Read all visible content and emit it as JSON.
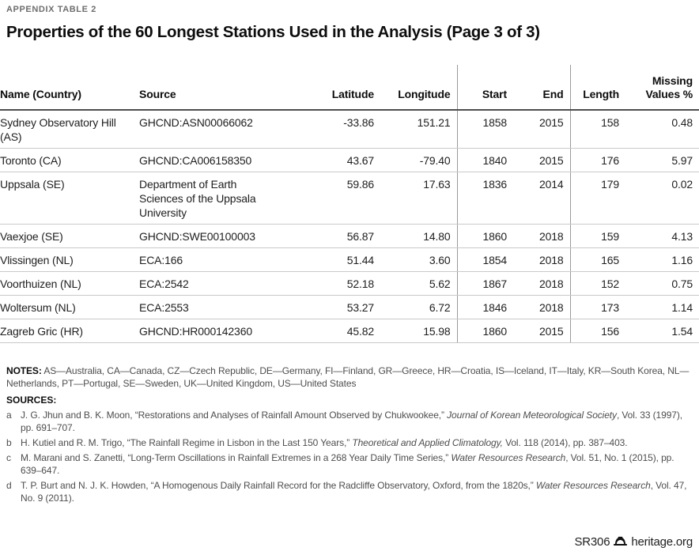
{
  "page": {
    "eyebrow": "APPENDIX TABLE 2",
    "title": "Properties of the 60 Longest Stations Used in the Analysis (Page 3 of 3)",
    "footer": {
      "report_id": "SR306",
      "site": "heritage.org",
      "logo": "heritage-bell-icon"
    }
  },
  "colors": {
    "header_rule": "#4d4d4d",
    "row_rule": "#c9c9c9",
    "vertical_rule": "#9a9a9a",
    "muted_text": "#4d4d4d"
  },
  "table": {
    "columns": {
      "name": "Name (Country)",
      "source": "Source",
      "latitude": "Latitude",
      "longitude": "Longitude",
      "start": "Start",
      "end": "End",
      "length": "Length",
      "missing": "Missing Values %"
    },
    "rows": [
      {
        "name": "Sydney Observatory Hill (AS)",
        "source": "GHCND:ASN00066062",
        "latitude": "-33.86",
        "longitude": "151.21",
        "start": "1858",
        "end": "2015",
        "length": "158",
        "missing": "0.48"
      },
      {
        "name": "Toronto (CA)",
        "source": "GHCND:CA006158350",
        "latitude": "43.67",
        "longitude": "-79.40",
        "start": "1840",
        "end": "2015",
        "length": "176",
        "missing": "5.97"
      },
      {
        "name": "Uppsala (SE)",
        "source": "Department of Earth Sciences of the Uppsala University",
        "latitude": "59.86",
        "longitude": "17.63",
        "start": "1836",
        "end": "2014",
        "length": "179",
        "missing": "0.02"
      },
      {
        "name": "Vaexjoe (SE)",
        "source": "GHCND:SWE00100003",
        "latitude": "56.87",
        "longitude": "14.80",
        "start": "1860",
        "end": "2018",
        "length": "159",
        "missing": "4.13"
      },
      {
        "name": "Vlissingen (NL)",
        "source": "ECA:166",
        "latitude": "51.44",
        "longitude": "3.60",
        "start": "1854",
        "end": "2018",
        "length": "165",
        "missing": "1.16"
      },
      {
        "name": "Voorthuizen (NL)",
        "source": "ECA:2542",
        "latitude": "52.18",
        "longitude": "5.62",
        "start": "1867",
        "end": "2018",
        "length": "152",
        "missing": "0.75"
      },
      {
        "name": "Woltersum (NL)",
        "source": "ECA:2553",
        "latitude": "53.27",
        "longitude": "6.72",
        "start": "1846",
        "end": "2018",
        "length": "173",
        "missing": "1.14"
      },
      {
        "name": "Zagreb Gric (HR)",
        "source": "GHCND:HR000142360",
        "latitude": "45.82",
        "longitude": "15.98",
        "start": "1860",
        "end": "2015",
        "length": "156",
        "missing": "1.54"
      }
    ]
  },
  "notes": {
    "label": "NOTES:",
    "text": "AS—Australia, CA—Canada, CZ—Czech Republic, DE—Germany, FI—Finland, GR—Greece, HR—Croatia, IS—Iceland, IT—Italy, KR—South Korea, NL—Netherlands, PT—Portugal, SE—Sweden, UK—United Kingdom, US—United States"
  },
  "sources": {
    "label": "SOURCES:",
    "items": [
      {
        "letter": "a",
        "pre": "J. G. Jhun and B. K. Moon, “Restorations and Analyses of Rainfall Amount Observed by Chukwookee,” ",
        "journal": "Journal of Korean Meteorological Society",
        "post": ", Vol. 33 (1997), pp. 691–707."
      },
      {
        "letter": "b",
        "pre": "H. Kutiel and R. M. Trigo, “The Rainfall Regime in Lisbon in the Last 150 Years,” ",
        "journal": "Theoretical and Applied Climatology,",
        "post": " Vol. 118 (2014), pp. 387–403."
      },
      {
        "letter": "c",
        "pre": "M. Marani and S. Zanetti, “Long-Term Oscillations in Rainfall Extremes in a 268 Year Daily Time Series,” ",
        "journal": "Water Resources Research",
        "post": ", Vol. 51, No. 1 (2015), pp. 639–647."
      },
      {
        "letter": "d",
        "pre": "T. P. Burt and N. J. K. Howden, “A Homogenous Daily Rainfall Record for the Radcliffe Observatory, Oxford, from the 1820s,” ",
        "journal": "Water Resources Research",
        "post": ", Vol. 47, No. 9 (2011)."
      }
    ]
  }
}
